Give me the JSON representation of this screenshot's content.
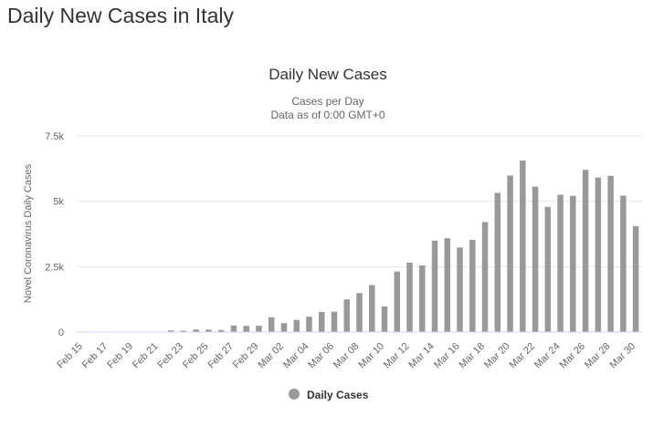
{
  "page": {
    "heading": "Daily New Cases in Italy"
  },
  "chart_data": {
    "type": "bar",
    "title": "Daily New Cases",
    "subtitle_lines": [
      "Cases per Day",
      "Data as of 0:00 GMT+0"
    ],
    "xlabel": "",
    "ylabel": "Novel Coronavirus Daily Cases",
    "ylim": [
      0,
      7500
    ],
    "y_ticks": [
      {
        "value": 0,
        "label": "0"
      },
      {
        "value": 2500,
        "label": "2.5k"
      },
      {
        "value": 5000,
        "label": "5k"
      },
      {
        "value": 7500,
        "label": "7.5k"
      }
    ],
    "grid": true,
    "legend_position": "bottom-center",
    "bar_color": "#999999",
    "categories": [
      "Feb 15",
      "Feb 16",
      "Feb 17",
      "Feb 18",
      "Feb 19",
      "Feb 20",
      "Feb 21",
      "Feb 22",
      "Feb 23",
      "Feb 24",
      "Feb 25",
      "Feb 26",
      "Feb 27",
      "Feb 28",
      "Feb 29",
      "Mar 01",
      "Mar 02",
      "Mar 03",
      "Mar 04",
      "Mar 05",
      "Mar 06",
      "Mar 07",
      "Mar 08",
      "Mar 09",
      "Mar 10",
      "Mar 11",
      "Mar 12",
      "Mar 13",
      "Mar 14",
      "Mar 15",
      "Mar 16",
      "Mar 17",
      "Mar 18",
      "Mar 19",
      "Mar 20",
      "Mar 21",
      "Mar 22",
      "Mar 23",
      "Mar 24",
      "Mar 25",
      "Mar 26",
      "Mar 27",
      "Mar 28",
      "Mar 29",
      "Mar 30"
    ],
    "shown_tick_labels": [
      "Feb 15",
      "Feb 17",
      "Feb 19",
      "Feb 21",
      "Feb 23",
      "Feb 25",
      "Feb 27",
      "Feb 29",
      "Mar 02",
      "Mar 04",
      "Mar 06",
      "Mar 08",
      "Mar 10",
      "Mar 12",
      "Mar 14",
      "Mar 16",
      "Mar 18",
      "Mar 20",
      "Mar 22",
      "Mar 24",
      "Mar 26",
      "Mar 28",
      "Mar 30"
    ],
    "series": [
      {
        "name": "Daily Cases",
        "values": [
          0,
          0,
          0,
          0,
          0,
          0,
          17,
          62,
          53,
          97,
          93,
          78,
          250,
          238,
          240,
          566,
          342,
          466,
          587,
          769,
          778,
          1247,
          1492,
          1797,
          977,
          2313,
          2651,
          2547,
          3497,
          3590,
          3233,
          3526,
          4207,
          5322,
          5986,
          6557,
          5560,
          4789,
          5249,
          5210,
          6203,
          5909,
          5974,
          5217,
          4050
        ]
      }
    ]
  }
}
